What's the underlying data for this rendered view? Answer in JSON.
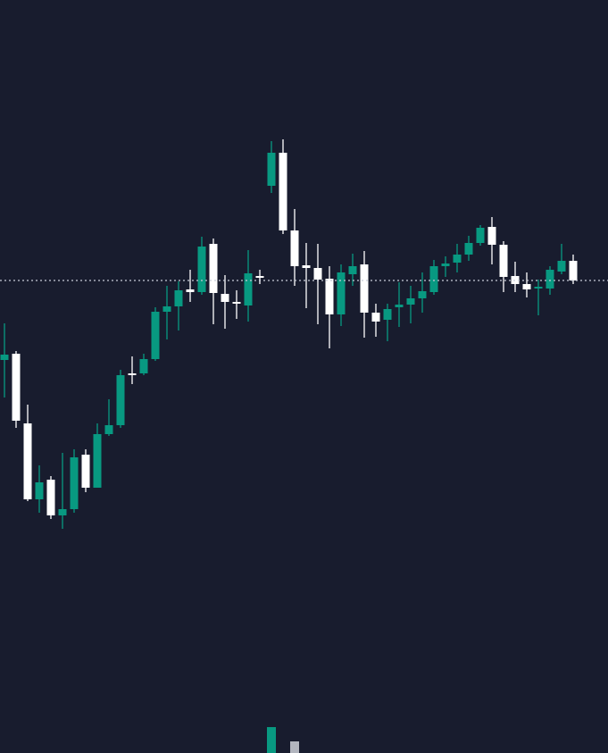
{
  "chart_data": {
    "type": "candlestick",
    "background": "#181c2e",
    "up_color": "#089981",
    "down_color": "#ffffff",
    "ylim": [
      0,
      843
    ],
    "y2lim": [
      0,
      843
    ],
    "price_line": 529,
    "price_line_color": "#c8ccd8",
    "open": [
      440,
      447,
      369,
      284,
      306,
      266,
      273,
      334,
      297,
      357,
      367,
      425,
      425,
      441,
      494,
      500,
      519,
      516,
      570,
      514,
      505,
      501,
      534,
      635,
      672,
      585,
      546,
      543,
      531,
      491,
      536,
      547,
      493,
      485,
      499,
      502,
      509,
      516,
      545,
      549,
      558,
      571,
      589,
      569,
      534,
      525,
      520,
      520,
      539,
      551
    ],
    "high": [
      481,
      450,
      390,
      322,
      310,
      336,
      340,
      340,
      369,
      396,
      429,
      444,
      447,
      499,
      523,
      528,
      541,
      578,
      576,
      535,
      518,
      563,
      541,
      685,
      687,
      609,
      571,
      570,
      545,
      547,
      559,
      562,
      503,
      503,
      527,
      523,
      538,
      552,
      556,
      570,
      579,
      591,
      600,
      573,
      550,
      538,
      530,
      545,
      570,
      558
    ],
    "low": [
      398,
      364,
      282,
      269,
      262,
      251,
      269,
      292,
      297,
      355,
      364,
      413,
      423,
      439,
      463,
      473,
      505,
      513,
      480,
      475,
      486,
      483,
      525,
      627,
      581,
      523,
      498,
      480,
      453,
      478,
      523,
      465,
      466,
      461,
      477,
      481,
      493,
      513,
      533,
      538,
      551,
      568,
      547,
      516,
      516,
      510,
      490,
      513,
      536,
      525
    ],
    "close": [
      446,
      372,
      284,
      303,
      266,
      273,
      331,
      297,
      357,
      367,
      423,
      423,
      441,
      494,
      500,
      518,
      516,
      567,
      515,
      505,
      503,
      537,
      532,
      672,
      585,
      545,
      543,
      530,
      491,
      538,
      545,
      493,
      483,
      497,
      502,
      509,
      517,
      545,
      548,
      558,
      571,
      588,
      569,
      533,
      525,
      519,
      522,
      541,
      551,
      529
    ],
    "volume": [
      null,
      null,
      null,
      null,
      null,
      null,
      null,
      null,
      null,
      null,
      null,
      null,
      null,
      null,
      null,
      null,
      null,
      null,
      null,
      null,
      null,
      null,
      null,
      29,
      null,
      13,
      null,
      null,
      null,
      null,
      null,
      null,
      null,
      null,
      null,
      null,
      null,
      null,
      null,
      null,
      null,
      null,
      null,
      null,
      null,
      null,
      null,
      null,
      null,
      null
    ],
    "volume_up_color": "#089981",
    "volume_down_color": "#b2b5be"
  }
}
